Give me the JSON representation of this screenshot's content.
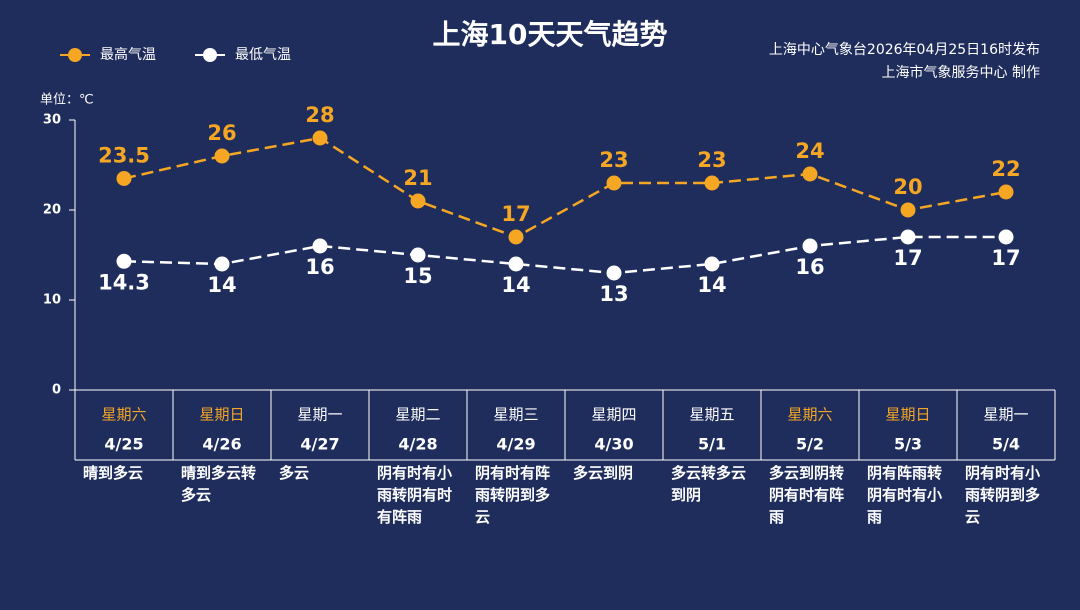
{
  "chart_data": {
    "type": "line",
    "title": "上海10天天气趋势",
    "source": [
      "上海中心气象台2026年04月25日16时发布",
      "上海市气象服务中心  制作"
    ],
    "unit_label": "单位：℃",
    "categories": [
      "4/25",
      "4/26",
      "4/27",
      "4/28",
      "4/29",
      "4/30",
      "5/1",
      "5/2",
      "5/3",
      "5/4"
    ],
    "weekdays": [
      "星期六",
      "星期日",
      "星期一",
      "星期二",
      "星期三",
      "星期四",
      "星期五",
      "星期六",
      "星期日",
      "星期一"
    ],
    "weekday_colors": [
      "#f5a623",
      "#f5a623",
      "#ffffff",
      "#ffffff",
      "#ffffff",
      "#ffffff",
      "#ffffff",
      "#f5a623",
      "#f5a623",
      "#ffffff"
    ],
    "weather": [
      "晴到多云",
      "晴到多云转多云",
      "多云",
      "阴有时有小雨转阴有时有阵雨",
      "阴有时有阵雨转阴到多云",
      "多云到阴",
      "多云转多云到阴",
      "多云到阴转阴有时有阵雨",
      "阴有阵雨转阴有时有小雨",
      "阴有时有小雨转阴到多云"
    ],
    "series": [
      {
        "name": "最高气温",
        "color": "#f5a623",
        "values": [
          23.5,
          26,
          28,
          21,
          17,
          23,
          23,
          24,
          20,
          22
        ]
      },
      {
        "name": "最低气温",
        "color": "#ffffff",
        "values": [
          14.3,
          14,
          16,
          15,
          14,
          13,
          14,
          16,
          17,
          17
        ]
      }
    ],
    "ylim": [
      0,
      30
    ],
    "yticks": [
      0,
      10,
      20,
      30
    ],
    "grid": false
  }
}
